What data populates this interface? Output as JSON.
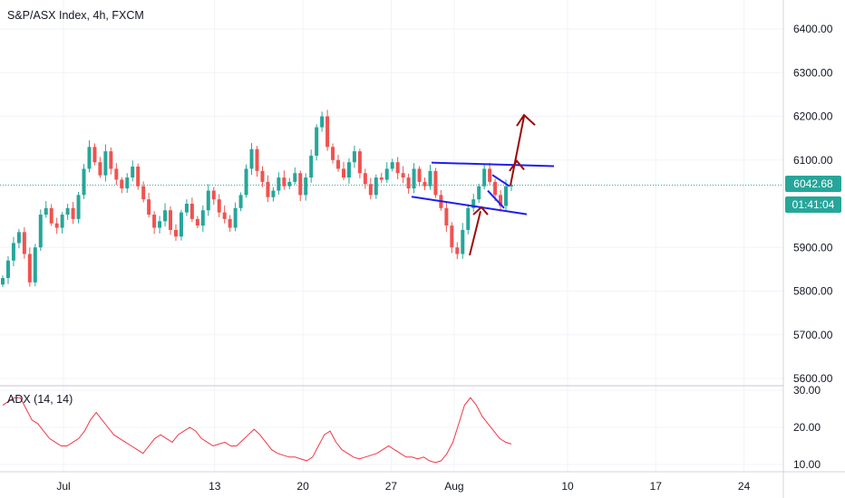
{
  "chart_data": [
    {
      "type": "candlestick",
      "title": "S&P/ASX Index, 4h, FXCM",
      "yticks": [
        "6400.00",
        "6300.00",
        "6200.00",
        "6100.00",
        "5900.00",
        "5800.00",
        "5700.00",
        "5600.00"
      ],
      "ylim": [
        5590,
        6440
      ],
      "xticks": [
        "Jul",
        "13",
        "20",
        "27",
        "Aug",
        "10",
        "17",
        "24"
      ],
      "grid": true,
      "current_price": "6042.68",
      "countdown": "01:41:04",
      "colors": {
        "up": "#26a69a",
        "down": "#ef5350",
        "trendline": "#1e1ef0",
        "arrow": "#9b0a0a",
        "price_line": "#26a69a"
      },
      "closes": [
        5830,
        5870,
        5910,
        5935,
        5885,
        5820,
        5900,
        5975,
        5990,
        5955,
        5945,
        5975,
        5990,
        5965,
        6020,
        6080,
        6130,
        6095,
        6065,
        6120,
        6080,
        6055,
        6035,
        6060,
        6085,
        6040,
        6010,
        5975,
        5945,
        5960,
        5985,
        5940,
        5925,
        5980,
        6000,
        5965,
        5950,
        5985,
        6030,
        6010,
        5980,
        5965,
        5945,
        5990,
        6020,
        6080,
        6125,
        6075,
        6050,
        6015,
        6030,
        6060,
        6040,
        6050,
        6070,
        6020,
        6060,
        6110,
        6175,
        6200,
        6130,
        6100,
        6080,
        6060,
        6095,
        6120,
        6070,
        6045,
        6020,
        6060,
        6055,
        6080,
        6095,
        6070,
        6060,
        6035,
        6080,
        6050,
        6040,
        6075,
        6020,
        5990,
        5950,
        5900,
        5885,
        5940,
        5990,
        6010,
        6040,
        6080,
        6050,
        6020,
        5995,
        6040,
        6042.68
      ],
      "adx": {
        "label": "ADX (14, 14)",
        "yticks": [
          "30.00",
          "20.00",
          "10.00"
        ],
        "ylim": [
          9,
          31
        ],
        "values": [
          26,
          27,
          28,
          28,
          25,
          22,
          21,
          19,
          17,
          16,
          15,
          15,
          16,
          17,
          19,
          22,
          24,
          22,
          20,
          18,
          17,
          16,
          15,
          14,
          13,
          15,
          17,
          18,
          17,
          16,
          18,
          19,
          20,
          19,
          17,
          16,
          15,
          15.5,
          16,
          15,
          15,
          16.5,
          18,
          19.5,
          18,
          16,
          14,
          13,
          12.5,
          12,
          12,
          11.5,
          11,
          12,
          15,
          18,
          19,
          16,
          14,
          13,
          12,
          11.5,
          12,
          12.5,
          13,
          14,
          15,
          14,
          13,
          12,
          12,
          11.5,
          12,
          11,
          10.5,
          11,
          13,
          16,
          21,
          26,
          28,
          26,
          23,
          21,
          19,
          17,
          16,
          15.5
        ]
      }
    }
  ]
}
